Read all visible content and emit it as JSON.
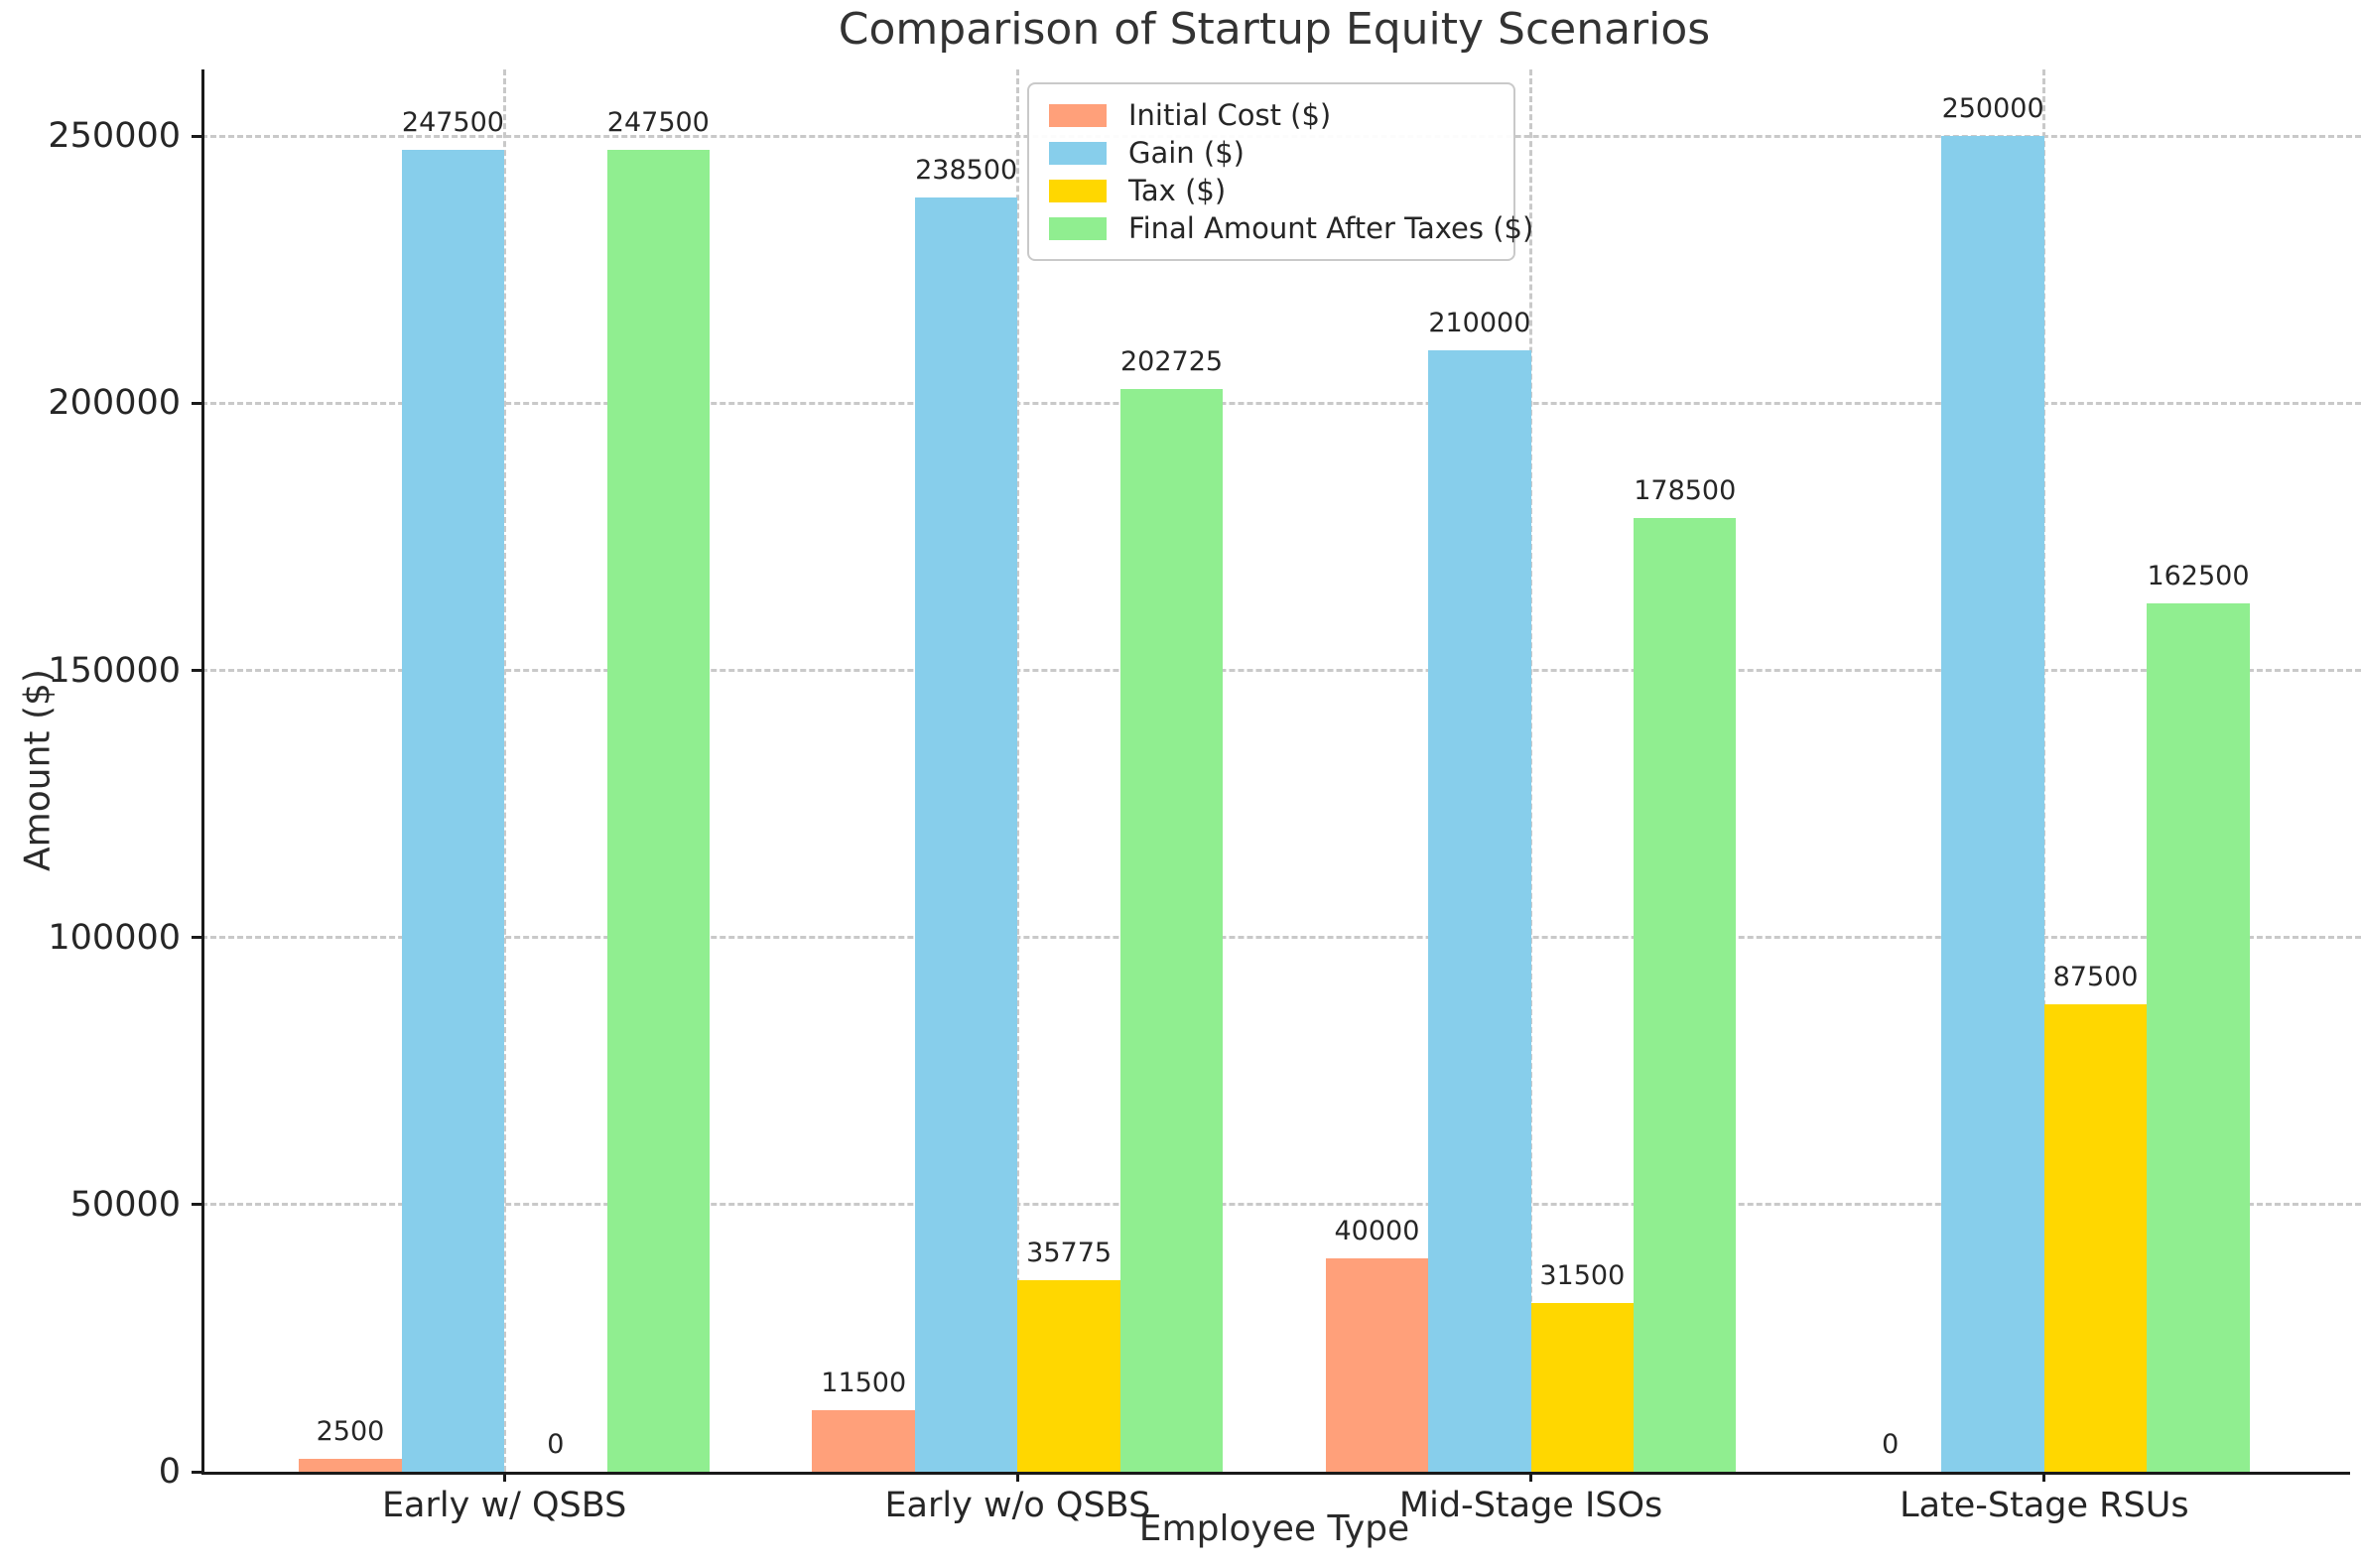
{
  "chart_data": {
    "type": "bar",
    "title": "Comparison of Startup Equity Scenarios",
    "xlabel": "Employee Type",
    "ylabel": "Amount ($)",
    "categories": [
      "Early w/ QSBS",
      "Early w/o QSBS",
      "Mid-Stage ISOs",
      "Late-Stage RSUs"
    ],
    "series": [
      {
        "name": "Initial Cost ($)",
        "color": "#FFA07A",
        "values": [
          2500,
          11500,
          40000,
          0
        ]
      },
      {
        "name": "Gain ($)",
        "color": "#87CEEB",
        "values": [
          247500,
          238500,
          210000,
          250000
        ]
      },
      {
        "name": "Tax ($)",
        "color": "#FFD700",
        "values": [
          0,
          35775,
          31500,
          87500
        ]
      },
      {
        "name": "Final Amount After Taxes ($)",
        "color": "#90EE90",
        "values": [
          247500,
          202725,
          178500,
          162500
        ]
      }
    ],
    "yticks": [
      0,
      50000,
      100000,
      150000,
      200000,
      250000
    ],
    "ylim": [
      0,
      262500
    ],
    "grid": true,
    "grid_style": "dashed",
    "legend_position": "upper center",
    "bar_value_labels": true
  }
}
